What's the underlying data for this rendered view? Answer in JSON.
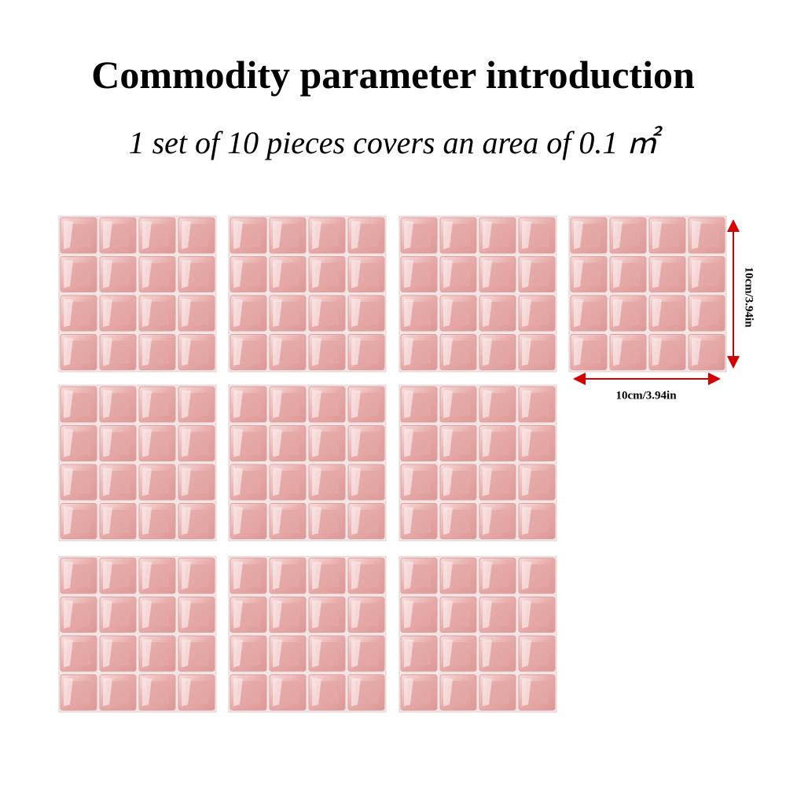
{
  "header": {
    "title": "Commodity parameter introduction",
    "subtitle": "1 set of 10 pieces covers an area of 0.1 ㎡"
  },
  "dimensions": {
    "height_label": "10cm/3.94in",
    "width_label": "10cm/3.94in"
  }
}
